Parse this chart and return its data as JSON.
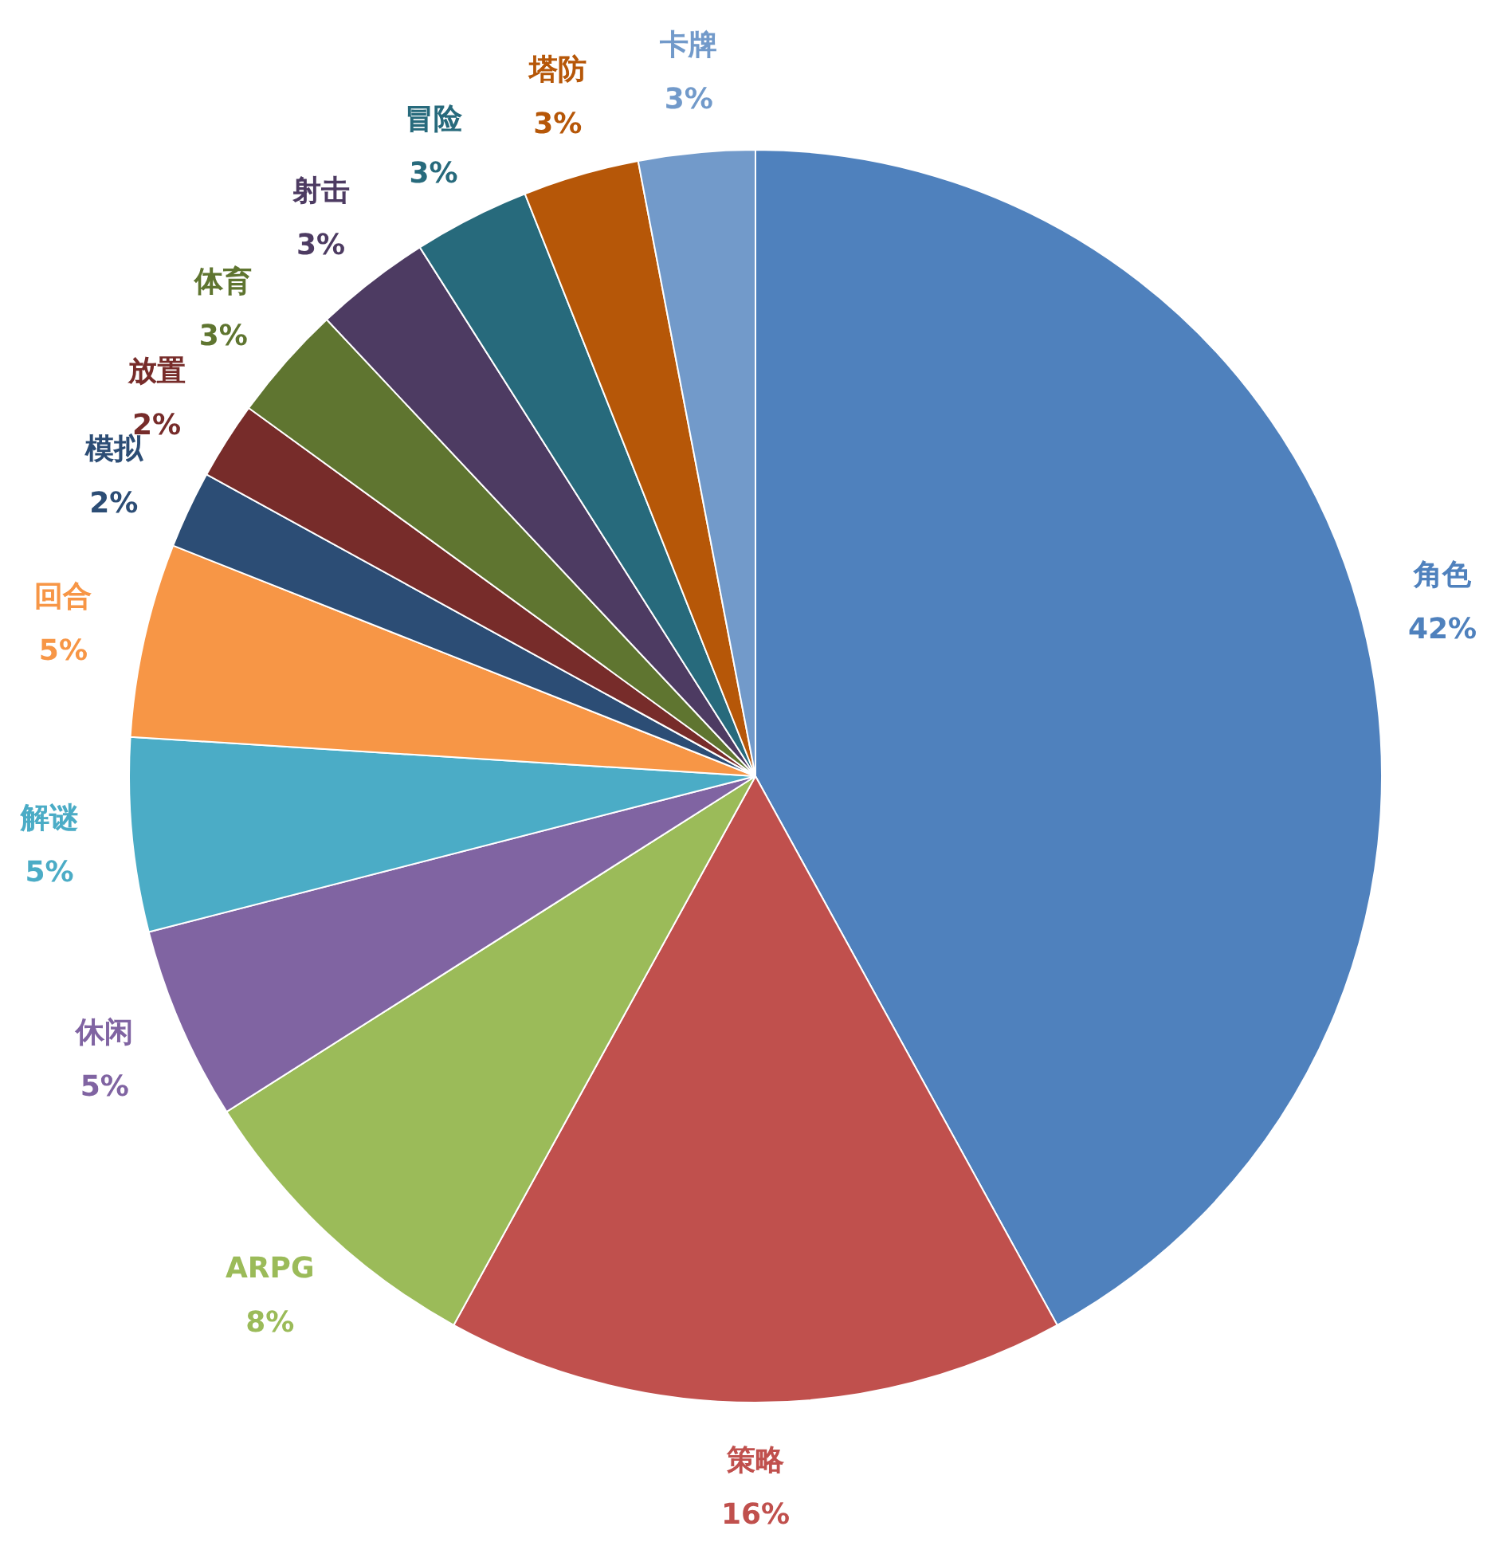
{
  "chart_data": {
    "type": "pie",
    "categories": [
      "角色",
      "策略",
      "ARPG",
      "休闲",
      "解谜",
      "回合",
      "模拟",
      "放置",
      "体育",
      "射击",
      "冒险",
      "塔防",
      "卡牌"
    ],
    "values": [
      42,
      16,
      8,
      5,
      5,
      5,
      2,
      2,
      3,
      3,
      3,
      3,
      3
    ],
    "value_labels": [
      "42%",
      "16%",
      "8%",
      "5%",
      "5%",
      "5%",
      "2%",
      "2%",
      "3%",
      "3%",
      "3%",
      "3%",
      "3%"
    ],
    "colors": [
      "#4f81bd",
      "#c0504d",
      "#9bbb59",
      "#8064a2",
      "#4bacc6",
      "#f79646",
      "#2c4d75",
      "#772c2a",
      "#5f7530",
      "#4d3b62",
      "#276a7c",
      "#b65708",
      "#729aca"
    ]
  }
}
